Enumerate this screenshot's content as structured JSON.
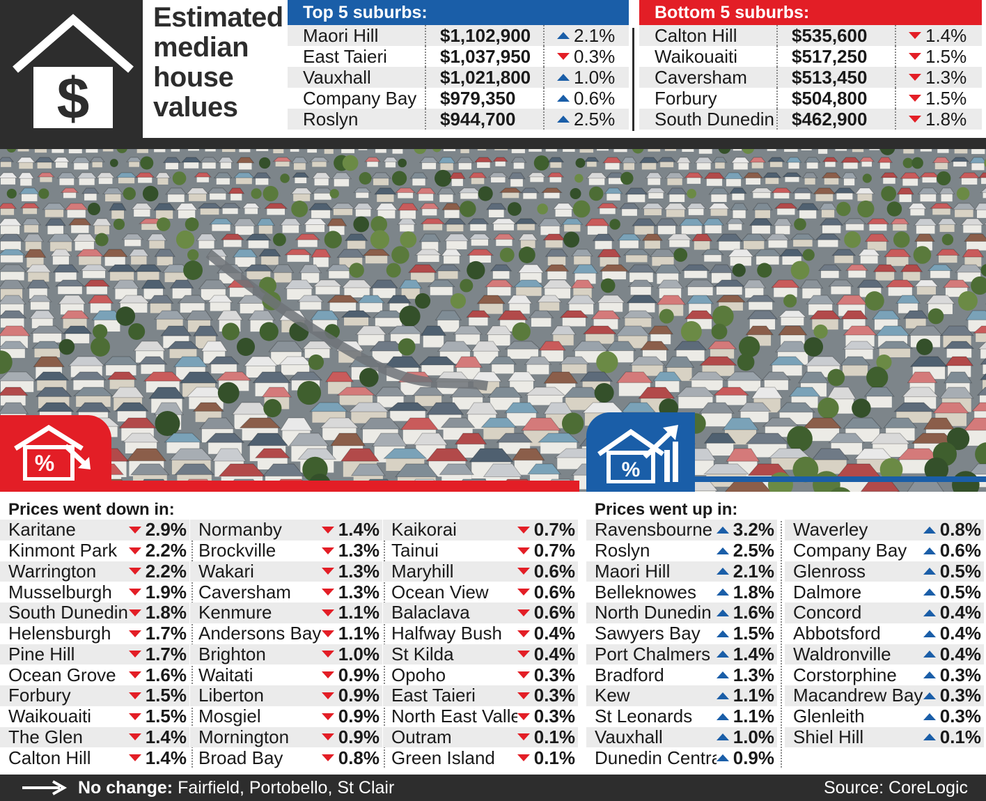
{
  "title_lines": [
    "Estimated",
    "median",
    "house",
    "values"
  ],
  "colors": {
    "up": "#1a5ea8",
    "down": "#e31e26",
    "frame": "#2d2d2d"
  },
  "top5": {
    "heading": "Top 5 suburbs:",
    "rows": [
      {
        "name": "Maori Hill",
        "value": "$1,102,900",
        "dir": "up",
        "change": "2.1%"
      },
      {
        "name": "East Taieri",
        "value": "$1,037,950",
        "dir": "down",
        "change": "0.3%"
      },
      {
        "name": "Vauxhall",
        "value": "$1,021,800",
        "dir": "up",
        "change": "1.0%"
      },
      {
        "name": "Company Bay",
        "value": "$979,350",
        "dir": "up",
        "change": "0.6%"
      },
      {
        "name": "Roslyn",
        "value": "$944,700",
        "dir": "up",
        "change": "2.5%"
      }
    ]
  },
  "bottom5": {
    "heading": "Bottom 5 suburbs:",
    "rows": [
      {
        "name": "Calton Hill",
        "value": "$535,600",
        "dir": "down",
        "change": "1.4%"
      },
      {
        "name": "Waikouaiti",
        "value": "$517,250",
        "dir": "down",
        "change": "1.5%"
      },
      {
        "name": "Caversham",
        "value": "$513,450",
        "dir": "down",
        "change": "1.3%"
      },
      {
        "name": "Forbury",
        "value": "$504,800",
        "dir": "down",
        "change": "1.5%"
      },
      {
        "name": "South Dunedin",
        "value": "$462,900",
        "dir": "down",
        "change": "1.8%"
      }
    ]
  },
  "down": {
    "heading": "Prices went down in:",
    "columns": [
      [
        {
          "name": "Karitane",
          "change": "2.9%"
        },
        {
          "name": "Kinmont Park",
          "change": "2.2%"
        },
        {
          "name": "Warrington",
          "change": "2.2%"
        },
        {
          "name": "Musselburgh",
          "change": "1.9%"
        },
        {
          "name": "South Dunedin",
          "change": "1.8%"
        },
        {
          "name": "Helensburgh",
          "change": "1.7%"
        },
        {
          "name": "Pine Hill",
          "change": "1.7%"
        },
        {
          "name": "Ocean Grove",
          "change": "1.6%"
        },
        {
          "name": "Forbury",
          "change": "1.5%"
        },
        {
          "name": "Waikouaiti",
          "change": "1.5%"
        },
        {
          "name": "The Glen",
          "change": "1.4%"
        },
        {
          "name": "Calton Hill",
          "change": "1.4%"
        }
      ],
      [
        {
          "name": "Normanby",
          "change": "1.4%"
        },
        {
          "name": "Brockville",
          "change": "1.3%"
        },
        {
          "name": "Wakari",
          "change": "1.3%"
        },
        {
          "name": "Caversham",
          "change": "1.3%"
        },
        {
          "name": "Kenmure",
          "change": "1.1%"
        },
        {
          "name": "Andersons Bay",
          "change": "1.1%"
        },
        {
          "name": "Brighton",
          "change": "1.0%"
        },
        {
          "name": "Waitati",
          "change": "0.9%"
        },
        {
          "name": "Liberton",
          "change": "0.9%"
        },
        {
          "name": "Mosgiel",
          "change": "0.9%"
        },
        {
          "name": "Mornington",
          "change": "0.9%"
        },
        {
          "name": "Broad Bay",
          "change": "0.8%"
        }
      ],
      [
        {
          "name": "Kaikorai",
          "change": "0.7%"
        },
        {
          "name": "Tainui",
          "change": "0.7%"
        },
        {
          "name": "Maryhill",
          "change": "0.6%"
        },
        {
          "name": "Ocean View",
          "change": "0.6%"
        },
        {
          "name": "Balaclava",
          "change": "0.6%"
        },
        {
          "name": "Halfway Bush",
          "change": "0.4%"
        },
        {
          "name": "St Kilda",
          "change": "0.4%"
        },
        {
          "name": "Opoho",
          "change": "0.3%"
        },
        {
          "name": "East Taieri",
          "change": "0.3%"
        },
        {
          "name": "North East Valley",
          "change": "0.3%"
        },
        {
          "name": "Outram",
          "change": "0.1%"
        },
        {
          "name": "Green Island",
          "change": "0.1%"
        }
      ]
    ]
  },
  "up": {
    "heading": "Prices went up in:",
    "columns": [
      [
        {
          "name": "Ravensbourne",
          "change": "3.2%"
        },
        {
          "name": "Roslyn",
          "change": "2.5%"
        },
        {
          "name": "Maori Hill",
          "change": "2.1%"
        },
        {
          "name": "Belleknowes",
          "change": "1.8%"
        },
        {
          "name": "North Dunedin",
          "change": "1.6%"
        },
        {
          "name": "Sawyers Bay",
          "change": "1.5%"
        },
        {
          "name": "Port Chalmers",
          "change": "1.4%"
        },
        {
          "name": "Bradford",
          "change": "1.3%"
        },
        {
          "name": "Kew",
          "change": "1.1%"
        },
        {
          "name": "St Leonards",
          "change": "1.1%"
        },
        {
          "name": "Vauxhall",
          "change": "1.0%"
        },
        {
          "name": "Dunedin Central",
          "change": "0.9%"
        }
      ],
      [
        {
          "name": "Waverley",
          "change": "0.8%"
        },
        {
          "name": "Company Bay",
          "change": "0.6%"
        },
        {
          "name": "Glenross",
          "change": "0.5%"
        },
        {
          "name": "Dalmore",
          "change": "0.5%"
        },
        {
          "name": "Concord",
          "change": "0.4%"
        },
        {
          "name": "Abbotsford",
          "change": "0.4%"
        },
        {
          "name": "Waldronville",
          "change": "0.4%"
        },
        {
          "name": "Corstorphine",
          "change": "0.3%"
        },
        {
          "name": "Macandrew Bay",
          "change": "0.3%"
        },
        {
          "name": "Glenleith",
          "change": "0.3%"
        },
        {
          "name": "Shiel Hill",
          "change": "0.1%"
        }
      ]
    ]
  },
  "footer": {
    "no_change_label": "No change:",
    "no_change_list": "Fairfield, Portobello, St Clair",
    "source": "Source: CoreLogic"
  },
  "chart_data": {
    "type": "table",
    "title": "Estimated median house values",
    "top5": [
      {
        "suburb": "Maori Hill",
        "median_value": 1102900,
        "change_pct": 2.1
      },
      {
        "suburb": "East Taieri",
        "median_value": 1037950,
        "change_pct": -0.3
      },
      {
        "suburb": "Vauxhall",
        "median_value": 1021800,
        "change_pct": 1.0
      },
      {
        "suburb": "Company Bay",
        "median_value": 979350,
        "change_pct": 0.6
      },
      {
        "suburb": "Roslyn",
        "median_value": 944700,
        "change_pct": 2.5
      }
    ],
    "bottom5": [
      {
        "suburb": "Calton Hill",
        "median_value": 535600,
        "change_pct": -1.4
      },
      {
        "suburb": "Waikouaiti",
        "median_value": 517250,
        "change_pct": -1.5
      },
      {
        "suburb": "Caversham",
        "median_value": 513450,
        "change_pct": -1.3
      },
      {
        "suburb": "Forbury",
        "median_value": 504800,
        "change_pct": -1.5
      },
      {
        "suburb": "South Dunedin",
        "median_value": 462900,
        "change_pct": -1.8
      }
    ],
    "prices_went_down_pct": {
      "Karitane": 2.9,
      "Kinmont Park": 2.2,
      "Warrington": 2.2,
      "Musselburgh": 1.9,
      "South Dunedin": 1.8,
      "Helensburgh": 1.7,
      "Pine Hill": 1.7,
      "Ocean Grove": 1.6,
      "Forbury": 1.5,
      "Waikouaiti": 1.5,
      "The Glen": 1.4,
      "Calton Hill": 1.4,
      "Normanby": 1.4,
      "Brockville": 1.3,
      "Wakari": 1.3,
      "Caversham": 1.3,
      "Kenmure": 1.1,
      "Andersons Bay": 1.1,
      "Brighton": 1.0,
      "Waitati": 0.9,
      "Liberton": 0.9,
      "Mosgiel": 0.9,
      "Mornington": 0.9,
      "Broad Bay": 0.8,
      "Kaikorai": 0.7,
      "Tainui": 0.7,
      "Maryhill": 0.6,
      "Ocean View": 0.6,
      "Balaclava": 0.6,
      "Halfway Bush": 0.4,
      "St Kilda": 0.4,
      "Opoho": 0.3,
      "East Taieri": 0.3,
      "North East Valley": 0.3,
      "Outram": 0.1,
      "Green Island": 0.1
    },
    "prices_went_up_pct": {
      "Ravensbourne": 3.2,
      "Roslyn": 2.5,
      "Maori Hill": 2.1,
      "Belleknowes": 1.8,
      "North Dunedin": 1.6,
      "Sawyers Bay": 1.5,
      "Port Chalmers": 1.4,
      "Bradford": 1.3,
      "Kew": 1.1,
      "St Leonards": 1.1,
      "Vauxhall": 1.0,
      "Dunedin Central": 0.9,
      "Waverley": 0.8,
      "Company Bay": 0.6,
      "Glenross": 0.5,
      "Dalmore": 0.5,
      "Concord": 0.4,
      "Abbotsford": 0.4,
      "Waldronville": 0.4,
      "Corstorphine": 0.3,
      "Macandrew Bay": 0.3,
      "Glenleith": 0.3,
      "Shiel Hill": 0.1
    },
    "no_change": [
      "Fairfield",
      "Portobello",
      "St Clair"
    ]
  }
}
